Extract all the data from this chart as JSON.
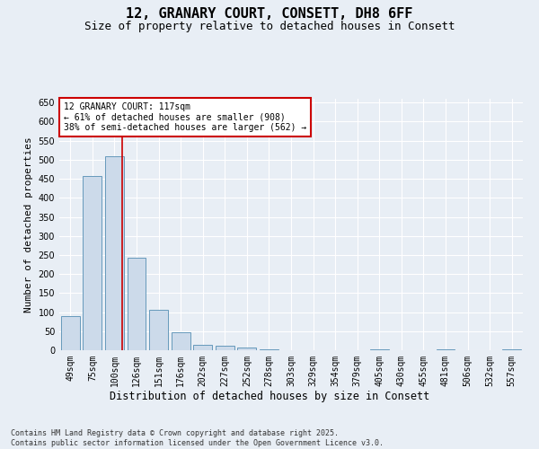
{
  "title": "12, GRANARY COURT, CONSETT, DH8 6FF",
  "subtitle": "Size of property relative to detached houses in Consett",
  "xlabel": "Distribution of detached houses by size in Consett",
  "ylabel": "Number of detached properties",
  "categories": [
    "49sqm",
    "75sqm",
    "100sqm",
    "126sqm",
    "151sqm",
    "176sqm",
    "202sqm",
    "227sqm",
    "252sqm",
    "278sqm",
    "303sqm",
    "329sqm",
    "354sqm",
    "379sqm",
    "405sqm",
    "430sqm",
    "455sqm",
    "481sqm",
    "506sqm",
    "532sqm",
    "557sqm"
  ],
  "values": [
    90,
    458,
    508,
    242,
    105,
    48,
    15,
    12,
    8,
    2,
    0,
    0,
    0,
    0,
    2,
    0,
    0,
    2,
    0,
    0,
    2
  ],
  "bar_color": "#ccdaea",
  "bar_edge_color": "#6699bb",
  "vline_color": "#cc0000",
  "vline_x_index": 2.35,
  "annotation_line1": "12 GRANARY COURT: 117sqm",
  "annotation_line2": "← 61% of detached houses are smaller (908)",
  "annotation_line3": "38% of semi-detached houses are larger (562) →",
  "annotation_box_color": "#ffffff",
  "annotation_box_edge_color": "#cc0000",
  "ylim": [
    0,
    660
  ],
  "yticks": [
    0,
    50,
    100,
    150,
    200,
    250,
    300,
    350,
    400,
    450,
    500,
    550,
    600,
    650
  ],
  "background_color": "#e8eef5",
  "footer_text": "Contains HM Land Registry data © Crown copyright and database right 2025.\nContains public sector information licensed under the Open Government Licence v3.0.",
  "title_fontsize": 11,
  "subtitle_fontsize": 9,
  "axis_label_fontsize": 8,
  "tick_fontsize": 7,
  "annotation_fontsize": 7,
  "footer_fontsize": 6
}
